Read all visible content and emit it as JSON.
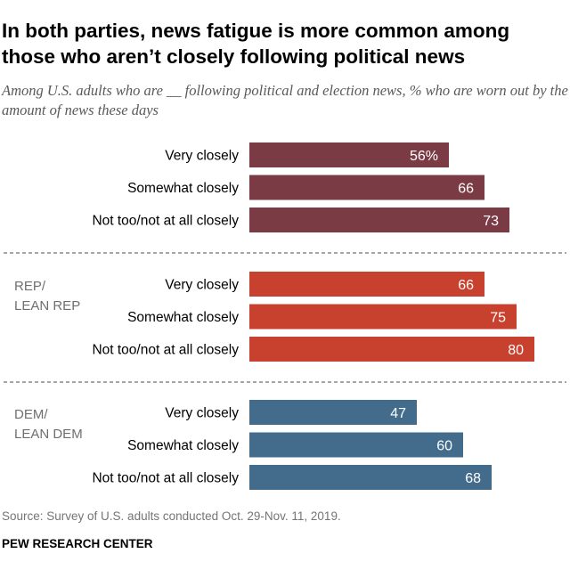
{
  "title": "In both parties, news fatigue is more common among those who aren’t closely following political news",
  "subtitle": "Among U.S. adults  who are __ following political and election news, % who are worn out by the amount of news these days",
  "source": "Source: Survey of U.S. adults conducted Oct. 29-Nov. 11, 2019.",
  "footer": "PEW RESEARCH CENTER",
  "chart_data": {
    "type": "bar",
    "orientation": "horizontal",
    "categories": [
      "Very closely",
      "Somewhat closely",
      "Not too/not at all closely"
    ],
    "value_suffix_first": "%",
    "xlim": [
      0,
      100
    ],
    "groups": [
      {
        "name": "",
        "color": "#7a3b45",
        "values": [
          56,
          66,
          73
        ]
      },
      {
        "name": "REP/\nLEAN REP",
        "color": "#c8412f",
        "values": [
          66,
          75,
          80
        ]
      },
      {
        "name": "DEM/\nLEAN DEM",
        "color": "#436b8b",
        "values": [
          47,
          60,
          68
        ]
      }
    ],
    "divider_color": "#a6a6a6",
    "group_label_color": "#6f6f6f"
  }
}
